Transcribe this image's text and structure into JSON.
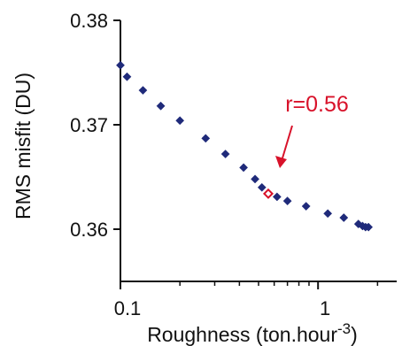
{
  "chart_data": {
    "type": "scatter",
    "xlabel_prefix": "Roughness (ton.hour",
    "xlabel_exponent": "-3",
    "xlabel_suffix": ")",
    "ylabel": "RMS misfit (DU)",
    "xscale": "log",
    "xlim": [
      0.1,
      2.5
    ],
    "ylim": [
      0.355,
      0.38
    ],
    "xticks": [
      {
        "value": 0.1,
        "label": "0.1"
      },
      {
        "value": 1,
        "label": "1"
      }
    ],
    "yticks": [
      {
        "value": 0.36,
        "label": "0.36"
      },
      {
        "value": 0.37,
        "label": "0.37"
      },
      {
        "value": 0.38,
        "label": "0.38"
      }
    ],
    "grid": false,
    "series": [
      {
        "color": "#1f2a7a",
        "marker": "filled-diamond",
        "points": [
          {
            "x": 0.1,
            "y": 0.3757
          },
          {
            "x": 0.108,
            "y": 0.3746
          },
          {
            "x": 0.13,
            "y": 0.3733
          },
          {
            "x": 0.16,
            "y": 0.3718
          },
          {
            "x": 0.2,
            "y": 0.3704
          },
          {
            "x": 0.27,
            "y": 0.3687
          },
          {
            "x": 0.34,
            "y": 0.3672
          },
          {
            "x": 0.42,
            "y": 0.3659
          },
          {
            "x": 0.48,
            "y": 0.3648
          },
          {
            "x": 0.52,
            "y": 0.364
          },
          {
            "x": 0.62,
            "y": 0.3631
          },
          {
            "x": 0.7,
            "y": 0.3627
          },
          {
            "x": 0.87,
            "y": 0.3622
          },
          {
            "x": 1.12,
            "y": 0.3615
          },
          {
            "x": 1.35,
            "y": 0.3611
          },
          {
            "x": 1.6,
            "y": 0.3605
          },
          {
            "x": 1.68,
            "y": 0.3603
          },
          {
            "x": 1.74,
            "y": 0.3602
          },
          {
            "x": 1.8,
            "y": 0.3602
          }
        ]
      }
    ],
    "highlight": {
      "x": 0.56,
      "y": 0.3634,
      "color": "#d8122a",
      "marker": "open-diamond"
    },
    "annotation": {
      "text": "r=0.56",
      "color": "#d8122a"
    }
  }
}
